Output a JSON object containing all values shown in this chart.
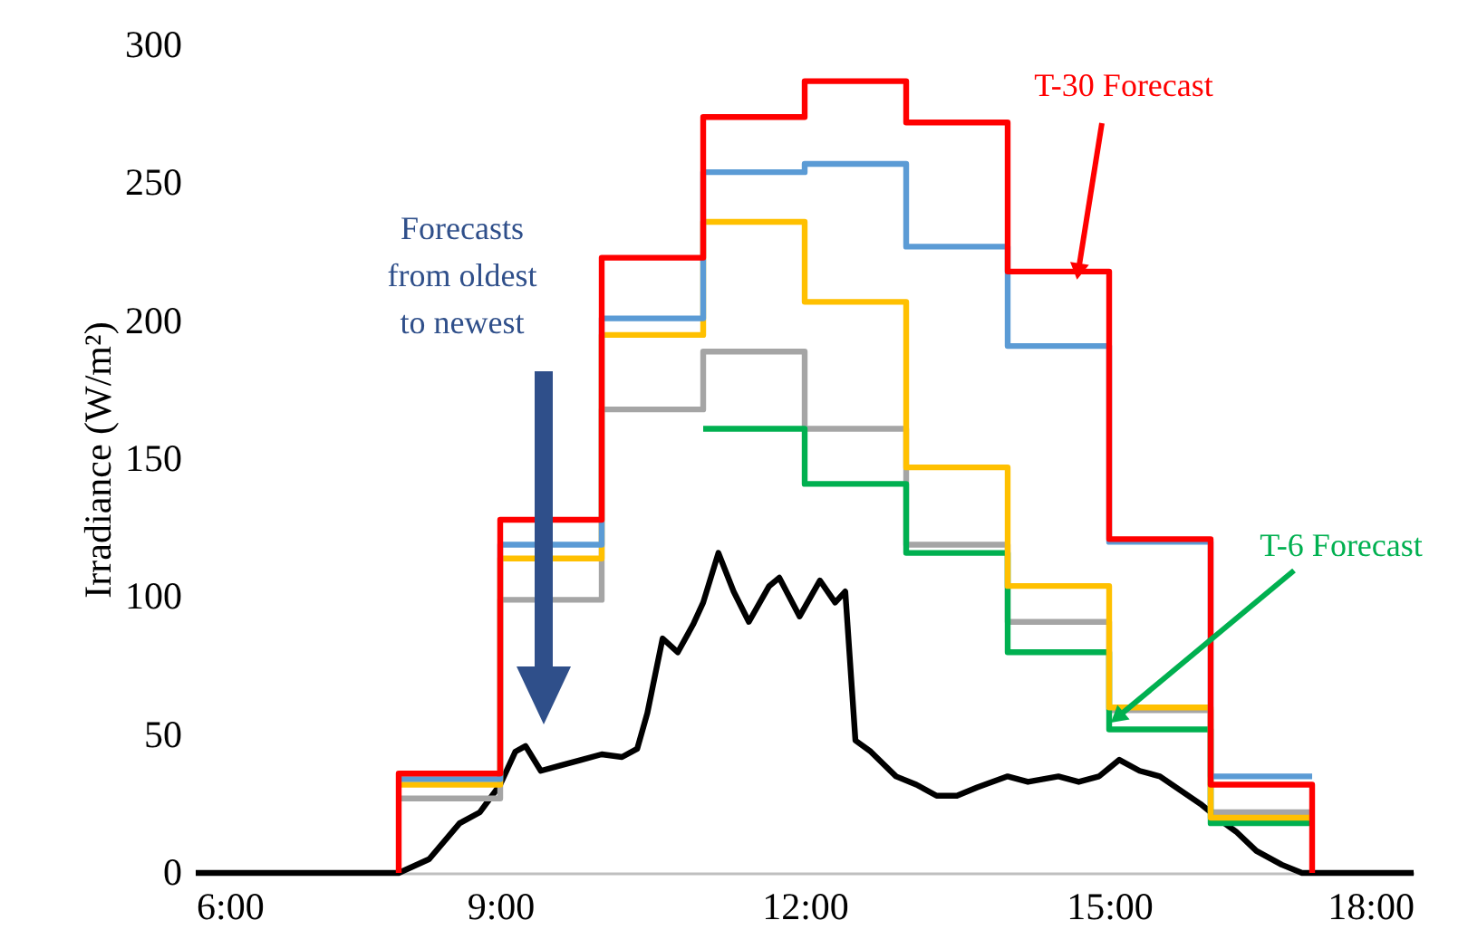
{
  "chart_data": {
    "type": "step",
    "ylabel": "Irradiance (W/m²)",
    "xlim": [
      6,
      18
    ],
    "xticks": [
      {
        "value": 6,
        "label": "6:00"
      },
      {
        "value": 9,
        "label": "9:00"
      },
      {
        "value": 12,
        "label": "12:00"
      },
      {
        "value": 15,
        "label": "15:00"
      },
      {
        "value": 18,
        "label": "18:00"
      }
    ],
    "ylim": [
      0,
      300
    ],
    "yticks": [
      0,
      50,
      100,
      150,
      200,
      250,
      300
    ],
    "grid": false,
    "line_style": "solid",
    "series": [
      {
        "type": "line",
        "color": "#000000",
        "x": [
          6,
          8,
          8.3,
          8.6,
          8.8,
          9,
          9.15,
          9.25,
          9.4,
          9.6,
          9.8,
          10,
          10.2,
          10.35,
          10.45,
          10.6,
          10.75,
          10.9,
          11,
          11.1,
          11.15,
          11.3,
          11.45,
          11.65,
          11.75,
          11.95,
          12.15,
          12.3,
          12.4,
          12.5,
          12.65,
          12.9,
          13.1,
          13.3,
          13.5,
          13.7,
          14,
          14.2,
          14.5,
          14.7,
          14.9,
          15,
          15.1,
          15.3,
          15.5,
          15.7,
          15.9,
          16.1,
          16.25,
          16.45,
          16.7,
          16.9,
          18
        ],
        "values": [
          0,
          0,
          5,
          18,
          22,
          32,
          44,
          46,
          37,
          39,
          41,
          43,
          42,
          45,
          58,
          85,
          80,
          90,
          98,
          110,
          116,
          102,
          91,
          104,
          107,
          93,
          106,
          98,
          102,
          48,
          44,
          35,
          32,
          28,
          28,
          31,
          35,
          33,
          35,
          33,
          35,
          38,
          41,
          37,
          35,
          30,
          25,
          19,
          15,
          8,
          3,
          0,
          0
        ]
      },
      {
        "color": "#a5a5a5",
        "x": [
          8,
          9,
          10,
          11,
          12,
          13,
          14,
          15,
          16,
          17
        ],
        "values": [
          27,
          99,
          168,
          189,
          161,
          119,
          91,
          59,
          22,
          22
        ]
      },
      {
        "color": "#00b050",
        "x": [
          11,
          12,
          13,
          14,
          15,
          16,
          17
        ],
        "values": [
          161,
          141,
          116,
          80,
          52,
          18,
          18
        ]
      },
      {
        "color": "#ffc000",
        "x": [
          8,
          9,
          10,
          11,
          12,
          13,
          14,
          15,
          16,
          17
        ],
        "values": [
          32,
          114,
          195,
          236,
          207,
          147,
          104,
          60,
          20,
          20
        ]
      },
      {
        "color": "#5b9bd5",
        "x": [
          8,
          9,
          10,
          11,
          12,
          13,
          14,
          15,
          16,
          17
        ],
        "values": [
          34,
          119,
          201,
          254,
          257,
          227,
          191,
          120,
          35,
          35
        ]
      },
      {
        "color": "#ff0000",
        "x": [
          8,
          8,
          9,
          10,
          11,
          12,
          13,
          14,
          15,
          16,
          17,
          17
        ],
        "values": [
          0,
          36,
          128,
          223,
          274,
          287,
          272,
          218,
          121,
          32,
          32,
          0
        ]
      }
    ],
    "annotations": [
      "Forecasts from oldest to newest",
      {
        "text": "T-30 Forecast",
        "x": 14.7,
        "y": 219
      },
      {
        "text": "T-6 Forecast",
        "x": 15.1,
        "y": 57
      }
    ]
  }
}
